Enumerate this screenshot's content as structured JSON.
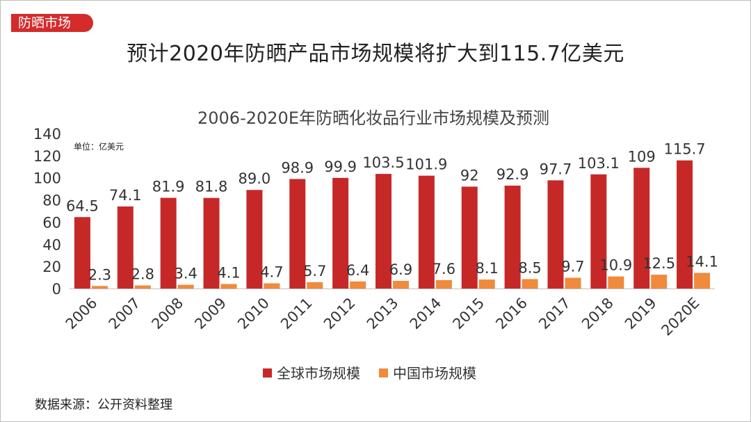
{
  "tag_label": "防晒市场",
  "page_title": "预计2020年防晒产品市场规模将扩大到115.7亿美元",
  "source_note": "数据来源：公开资料整理",
  "colors": {
    "global": "#c62828",
    "china": "#f08a3c",
    "tag_bg": "#d42b2b"
  },
  "chart_data": {
    "type": "bar",
    "title": "2006-2020E年防晒化妆品行业市场规模及预测",
    "unit_label": "单位：亿美元",
    "categories": [
      "2006",
      "2007",
      "2008",
      "2009",
      "2010",
      "2011",
      "2012",
      "2013",
      "2014",
      "2015",
      "2016",
      "2017",
      "2018",
      "2019",
      "2020E"
    ],
    "series": [
      {
        "name": "全球市场规模",
        "values": [
          64.5,
          74.1,
          81.9,
          81.8,
          89.0,
          98.9,
          99.9,
          103.5,
          101.9,
          92,
          92.9,
          97.7,
          103.1,
          109,
          115.7
        ],
        "labels": [
          "64.5",
          "74.1",
          "81.9",
          "81.8",
          "89.0",
          "98.9",
          "99.9",
          "103.5",
          "101.9",
          "92",
          "92.9",
          "97.7",
          "103.1",
          "109",
          "115.7"
        ]
      },
      {
        "name": "中国市场规模",
        "values": [
          2.3,
          2.8,
          3.4,
          4.1,
          4.7,
          5.7,
          6.4,
          6.9,
          7.6,
          8.1,
          8.5,
          9.7,
          10.9,
          12.5,
          14.1
        ],
        "labels": [
          "2.3",
          "2.8",
          "3.4",
          "4.1",
          "4.7",
          "5.7",
          "6.4",
          "6.9",
          "7.6",
          "8.1",
          "8.5",
          "9.7",
          "10.9",
          "12.5",
          "14.1"
        ]
      }
    ],
    "yticks": [
      "0",
      "20",
      "40",
      "60",
      "80",
      "100",
      "120",
      "140"
    ],
    "ylim": [
      0,
      140
    ],
    "legend_position": "bottom",
    "grid": false
  }
}
